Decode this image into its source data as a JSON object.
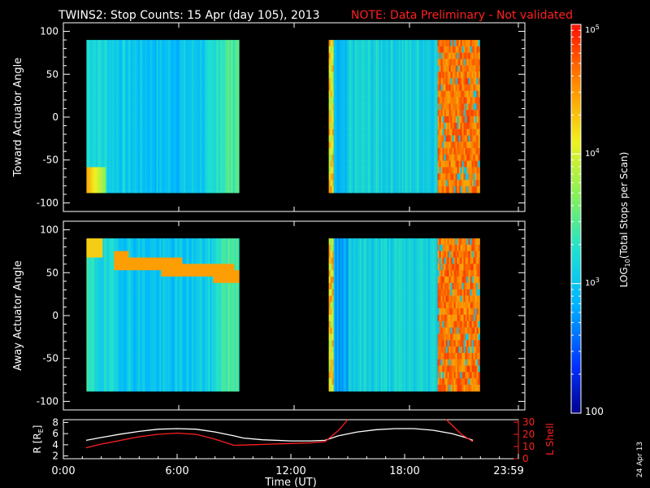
{
  "header": {
    "title": "TWINS2: Stop Counts: 15 Apr (day 105), 2013",
    "note": "NOTE: Data Preliminary - Not validated"
  },
  "footer": {
    "date_stamp": "24 Apr 13"
  },
  "chart_data": [
    {
      "type": "heatmap",
      "ylabel": "Toward Actuator Angle",
      "ylim": [
        -110,
        110
      ],
      "yticks": [
        "100",
        "50",
        "0",
        "-50",
        "-100"
      ],
      "data_time_ranges_hours": [
        [
          1.2,
          9.1
        ],
        [
          13.8,
          21.6
        ]
      ],
      "angle_range": [
        -88,
        90
      ],
      "grid": false
    },
    {
      "type": "heatmap",
      "ylabel": "Away Actuator Angle",
      "ylim": [
        -110,
        110
      ],
      "yticks": [
        "100",
        "50",
        "0",
        "-50",
        "-100"
      ],
      "data_time_ranges_hours": [
        [
          1.2,
          9.1
        ],
        [
          13.8,
          21.6
        ]
      ],
      "angle_range": [
        -88,
        90
      ],
      "grid": false
    },
    {
      "type": "line",
      "xlabel": "Time (UT)",
      "xticks": [
        "0:00",
        "6:00",
        "12:00",
        "18:00",
        "23:59"
      ],
      "xlim_hours": [
        0,
        24
      ],
      "left_axis": {
        "label": "R [R",
        "subscript": "E",
        "close": "]",
        "ticks": [
          "2",
          "4",
          "6",
          "8"
        ],
        "ylim": [
          1.5,
          8.5
        ]
      },
      "right_axis": {
        "label": "L Shell",
        "ticks": [
          "0",
          "10",
          "20",
          "30"
        ],
        "ylim": [
          0,
          32
        ],
        "color": "#ff2020"
      },
      "series": [
        {
          "axis": "left",
          "color": "#ffffff",
          "x": [
            1.2,
            2,
            3,
            4,
            5,
            6,
            7,
            8,
            9,
            9.5,
            10.5,
            12,
            13,
            13.8,
            14.5,
            15.5,
            16.5,
            17.5,
            18.5,
            19.5,
            20.5,
            21.2,
            21.6
          ],
          "y": [
            4.8,
            5.3,
            5.9,
            6.4,
            6.8,
            6.9,
            6.8,
            6.3,
            5.6,
            5.2,
            4.9,
            4.7,
            4.7,
            4.8,
            5.6,
            6.3,
            6.7,
            6.9,
            6.9,
            6.6,
            6.0,
            5.3,
            4.8
          ]
        },
        {
          "axis": "right",
          "color": "#ff2020",
          "x": [
            1.2,
            2,
            3,
            4,
            5,
            6,
            7,
            8,
            9.0,
            10,
            11,
            12,
            13,
            13.8,
            14.5,
            15.0
          ],
          "y": [
            9,
            12,
            15,
            18,
            20,
            21,
            20,
            16,
            11,
            11.5,
            12,
            12.5,
            13,
            14,
            23,
            32
          ]
        },
        {
          "axis": "right",
          "color": "#ff2020",
          "x": [
            20.2,
            20.6,
            21.0,
            21.6
          ],
          "y": [
            32,
            26,
            20,
            14
          ]
        }
      ]
    }
  ],
  "colorbar": {
    "label_prefix": "LOG",
    "label_sub": "10",
    "label_suffix": "(Total Stops per Scan)",
    "tick_top_base": "10",
    "tick_top_exp": "5",
    "tick_mid_base": "10",
    "tick_mid_exp": "4",
    "tick_low_base": "10",
    "tick_low_exp": "3",
    "tick_bottom": "100",
    "range_log": [
      2,
      5
    ]
  }
}
